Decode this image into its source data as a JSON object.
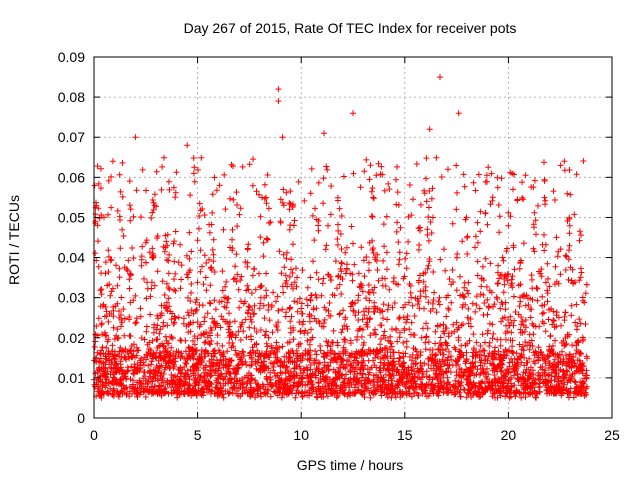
{
  "chart_data": {
    "type": "scatter",
    "title": "Day 267 of 2015, Rate Of TEC Index for receiver pots",
    "xlabel": "GPS time / hours",
    "ylabel": "ROTI / TECUs",
    "xlim": [
      0,
      25
    ],
    "ylim": [
      0,
      0.09
    ],
    "grid": true,
    "marker": "+",
    "color": "#ff0000",
    "x_ticks": [
      0,
      5,
      10,
      15,
      20,
      25
    ],
    "x_tick_labels": [
      "0",
      "5",
      "10",
      "15",
      "20",
      "25"
    ],
    "y_ticks": [
      0,
      0.01,
      0.02,
      0.03,
      0.04,
      0.05,
      0.06,
      0.07,
      0.08,
      0.09
    ],
    "y_tick_labels": [
      "0",
      "0.01",
      "0.02",
      "0.03",
      "0.04",
      "0.05",
      "0.06",
      "0.07",
      "0.08",
      "0.09"
    ],
    "data_x_range": [
      0,
      23.8
    ],
    "data_y_range": [
      0.002,
      0.085
    ],
    "notable_points": [
      {
        "x": 8.9,
        "y": 0.082
      },
      {
        "x": 8.9,
        "y": 0.079
      },
      {
        "x": 16.7,
        "y": 0.085
      },
      {
        "x": 12.5,
        "y": 0.076
      },
      {
        "x": 17.6,
        "y": 0.076
      },
      {
        "x": 2.0,
        "y": 0.07
      },
      {
        "x": 9.1,
        "y": 0.07
      },
      {
        "x": 16.2,
        "y": 0.072
      },
      {
        "x": 11.1,
        "y": 0.071
      },
      {
        "x": 4.5,
        "y": 0.068
      },
      {
        "x": 22.7,
        "y": 0.064
      }
    ]
  }
}
